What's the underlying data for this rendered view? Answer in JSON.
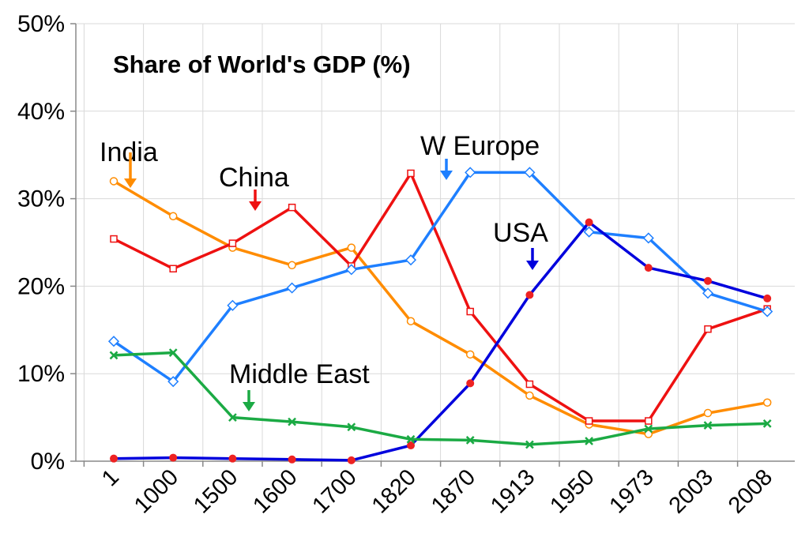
{
  "chart_data": {
    "type": "line",
    "title": "Share of World's GDP (%)",
    "xlabel": "",
    "ylabel": "",
    "categories": [
      "1",
      "1000",
      "1500",
      "1600",
      "1700",
      "1820",
      "1870",
      "1913",
      "1950",
      "1973",
      "2003",
      "2008"
    ],
    "y_ticks": [
      "0%",
      "10%",
      "20%",
      "30%",
      "40%",
      "50%"
    ],
    "ylim": [
      0,
      50
    ],
    "grid": true,
    "legend": "inline annotations",
    "series": [
      {
        "key": "india",
        "name": "India",
        "color": "#FF8C00",
        "marker": "circle-open",
        "values": [
          32.0,
          28.0,
          24.4,
          22.4,
          24.4,
          16.0,
          12.2,
          7.5,
          4.2,
          3.1,
          5.5,
          6.7
        ]
      },
      {
        "key": "china",
        "name": "China",
        "color": "#EE1111",
        "marker": "square-open",
        "values": [
          25.4,
          22.0,
          24.9,
          29.0,
          22.3,
          32.9,
          17.1,
          8.8,
          4.6,
          4.6,
          15.1,
          17.4
        ]
      },
      {
        "key": "w-europe",
        "name": "W Europe",
        "color": "#1E7FFF",
        "marker": "diamond-open",
        "values": [
          13.7,
          9.1,
          17.8,
          19.8,
          21.9,
          23.0,
          33.0,
          33.0,
          26.2,
          25.5,
          19.2,
          17.1
        ]
      },
      {
        "key": "usa",
        "name": "USA",
        "color": "#0000DD",
        "marker": "dot-red",
        "values": [
          0.3,
          0.4,
          0.3,
          0.2,
          0.1,
          1.8,
          8.9,
          19.0,
          27.3,
          22.1,
          20.6,
          18.6
        ]
      },
      {
        "key": "middle-east",
        "name": "Middle East",
        "color": "#1BAA44",
        "marker": "x",
        "values": [
          12.1,
          12.4,
          5.0,
          4.5,
          3.9,
          2.5,
          2.4,
          1.9,
          2.3,
          3.7,
          4.1,
          4.3
        ]
      }
    ]
  }
}
